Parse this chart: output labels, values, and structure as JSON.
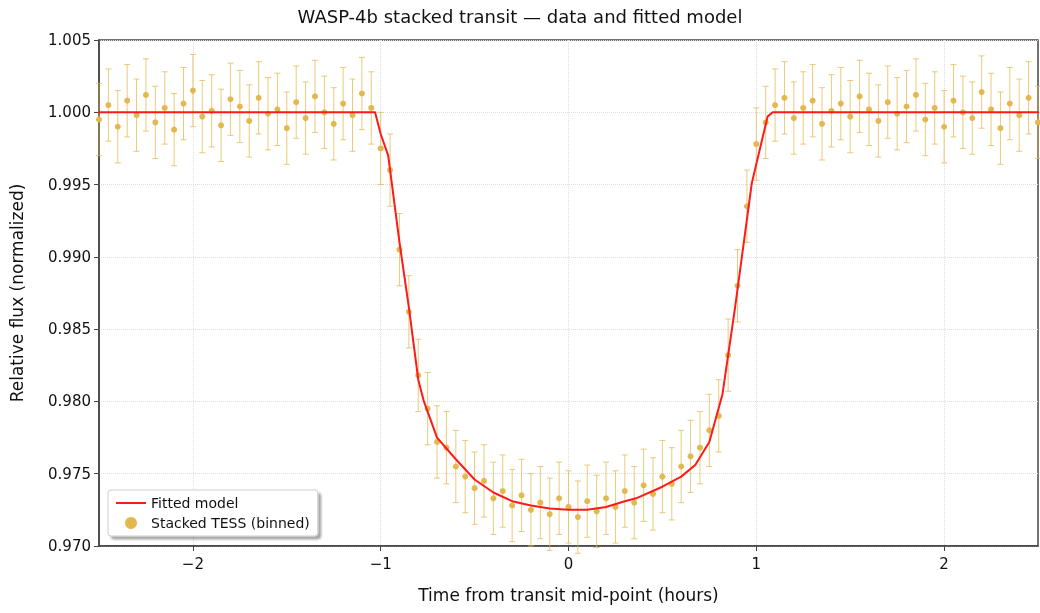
{
  "chart_data": {
    "type": "scatter",
    "title": "WASP-4b stacked transit — data and fitted model",
    "xlabel": "Time from transit mid-point (hours)",
    "ylabel": "Relative flux (normalized)",
    "xlim": [
      -2.5,
      2.5
    ],
    "ylim": [
      0.97,
      1.005
    ],
    "xticks": [
      {
        "value": -2,
        "label": "−2"
      },
      {
        "value": -1,
        "label": "−1"
      },
      0,
      1,
      2
    ],
    "yticks": [
      {
        "value": 0.97,
        "label": "0.970"
      },
      {
        "value": 0.975,
        "label": "0.975"
      },
      {
        "value": 0.98,
        "label": "0.980"
      },
      {
        "value": 0.985,
        "label": "0.985"
      },
      {
        "value": 0.99,
        "label": "0.990"
      },
      {
        "value": 0.995,
        "label": "0.995"
      },
      {
        "value": 1,
        "label": "1.000"
      },
      {
        "value": 1.005,
        "label": "1.005"
      }
    ],
    "grid": true,
    "legend": "bottom left",
    "series": [
      {
        "name": "Fitted model",
        "type": "line",
        "color": "#ff1a1a",
        "marker": "none",
        "line_style": "solid",
        "x": [
          -2.5,
          -1.03,
          -1.0,
          -0.96,
          -0.9,
          -0.85,
          -0.8,
          -0.77,
          -0.7,
          -0.6,
          -0.5,
          -0.4,
          -0.3,
          -0.2,
          -0.1,
          0,
          0.1,
          0.2,
          0.3,
          0.36,
          0.5,
          0.6,
          0.675,
          0.75,
          0.82,
          0.887,
          0.976,
          1.06,
          1.087,
          2.5
        ],
        "values": [
          1.0,
          1.0,
          0.9985,
          0.997,
          0.991,
          0.9865,
          0.9815,
          0.98,
          0.9775,
          0.976,
          0.9746,
          0.9737,
          0.9731,
          0.9728,
          0.9726,
          0.9725,
          0.9725,
          0.9727,
          0.9731,
          0.9733,
          0.9741,
          0.9748,
          0.9756,
          0.9772,
          0.9805,
          0.9865,
          0.9951,
          0.9997,
          1.0,
          1.0
        ]
      },
      {
        "name": "Stacked TESS (binned)",
        "color": "#e3b94f",
        "marker": "circle",
        "x": [
          -2.5,
          -2.45,
          -2.4,
          -2.35,
          -2.3,
          -2.25,
          -2.2,
          -2.15,
          -2.1,
          -2.05,
          -2.0,
          -1.95,
          -1.9,
          -1.85,
          -1.8,
          -1.75,
          -1.7,
          -1.65,
          -1.6,
          -1.55,
          -1.5,
          -1.45,
          -1.4,
          -1.35,
          -1.3,
          -1.25,
          -1.2,
          -1.15,
          -1.1,
          -1.05,
          -1.0,
          -0.95,
          -0.9,
          -0.85,
          -0.8,
          -0.75,
          -0.7,
          -0.65,
          -0.6,
          -0.55,
          -0.5,
          -0.45,
          -0.4,
          -0.35,
          -0.3,
          -0.25,
          -0.2,
          -0.15,
          -0.1,
          -0.05,
          0,
          0.05,
          0.1,
          0.15,
          0.2,
          0.25,
          0.3,
          0.35,
          0.4,
          0.45,
          0.5,
          0.55,
          0.6,
          0.65,
          0.7,
          0.75,
          0.8,
          0.85,
          0.9,
          0.95,
          1.0,
          1.05,
          1.1,
          1.15,
          1.2,
          1.25,
          1.3,
          1.35,
          1.4,
          1.45,
          1.5,
          1.55,
          1.6,
          1.65,
          1.7,
          1.75,
          1.8,
          1.85,
          1.9,
          1.95,
          2.0,
          2.05,
          2.1,
          2.15,
          2.2,
          2.25,
          2.3,
          2.35,
          2.4,
          2.45,
          2.5
        ],
        "values": [
          0.9995,
          1.0005,
          0.999,
          1.0008,
          0.9998,
          1.0012,
          0.9993,
          1.0003,
          0.9988,
          1.0006,
          1.0015,
          0.9997,
          1.0001,
          0.9991,
          1.0009,
          1.0004,
          0.9994,
          1.001,
          0.9999,
          1.0002,
          0.9989,
          1.0007,
          0.9996,
          1.0011,
          1.0,
          0.9992,
          1.0006,
          0.9998,
          1.0013,
          1.0003,
          0.9975,
          0.996,
          0.9905,
          0.9862,
          0.9818,
          0.9795,
          0.9772,
          0.9768,
          0.9755,
          0.9748,
          0.974,
          0.9745,
          0.9733,
          0.9738,
          0.9728,
          0.9735,
          0.9725,
          0.973,
          0.9722,
          0.9733,
          0.9727,
          0.972,
          0.9731,
          0.9724,
          0.9733,
          0.9727,
          0.9738,
          0.973,
          0.9742,
          0.9736,
          0.9748,
          0.9743,
          0.9755,
          0.9762,
          0.9768,
          0.978,
          0.979,
          0.9832,
          0.988,
          0.9935,
          0.9978,
          0.9993,
          1.0005,
          1.001,
          0.9996,
          1.0003,
          1.0008,
          0.9992,
          1.0001,
          1.0006,
          0.9997,
          1.0011,
          1.0002,
          0.9994,
          1.0007,
          0.9999,
          1.0004,
          1.0012,
          0.9995,
          1.0003,
          0.999,
          1.0008,
          1.0,
          0.9996,
          1.0014,
          1.0002,
          0.9989,
          1.0006,
          0.9998,
          1.001,
          0.9993
        ],
        "errors": [
          0.0025,
          0.0025,
          0.0025,
          0.0025,
          0.0025,
          0.0025,
          0.0025,
          0.0025,
          0.0025,
          0.0025,
          0.0025,
          0.0025,
          0.0025,
          0.0025,
          0.0025,
          0.0025,
          0.0025,
          0.0025,
          0.0025,
          0.0025,
          0.0025,
          0.0025,
          0.0025,
          0.0025,
          0.0025,
          0.0025,
          0.0025,
          0.0025,
          0.0025,
          0.0025,
          0.0025,
          0.0025,
          0.0025,
          0.0025,
          0.0025,
          0.0025,
          0.0025,
          0.0025,
          0.0025,
          0.0025,
          0.0025,
          0.0025,
          0.0025,
          0.0025,
          0.0025,
          0.0025,
          0.0025,
          0.0025,
          0.0025,
          0.0025,
          0.0025,
          0.0025,
          0.0025,
          0.0025,
          0.0025,
          0.0025,
          0.0025,
          0.0025,
          0.0025,
          0.0025,
          0.0025,
          0.0025,
          0.0025,
          0.0025,
          0.0025,
          0.0025,
          0.0025,
          0.0025,
          0.0025,
          0.0025,
          0.0025,
          0.0025,
          0.0025,
          0.0025,
          0.0025,
          0.0025,
          0.0025,
          0.0025,
          0.0025,
          0.0025,
          0.0025,
          0.0025,
          0.0025,
          0.0025,
          0.0025,
          0.0025,
          0.0025,
          0.0025,
          0.0025,
          0.0025,
          0.0025,
          0.0025,
          0.0025,
          0.0025,
          0.0025,
          0.0025,
          0.0025,
          0.0025,
          0.0025,
          0.0025,
          0.0025
        ]
      }
    ]
  }
}
